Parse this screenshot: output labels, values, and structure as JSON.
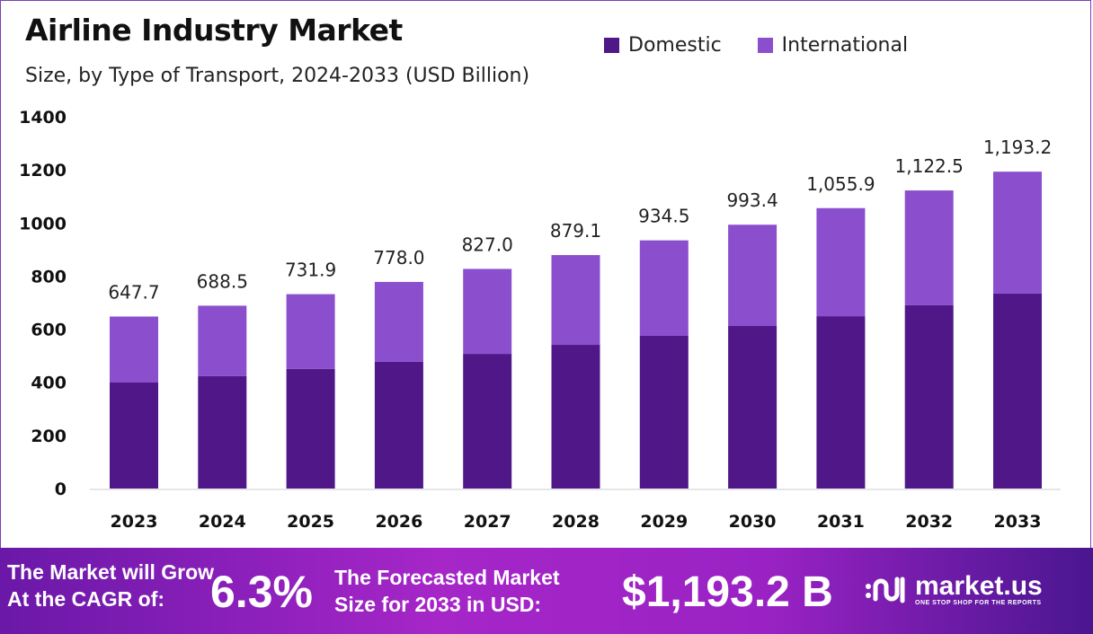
{
  "chart_data": {
    "type": "bar",
    "stacked": true,
    "title": "Airline Industry Market",
    "subtitle": "Size, by Type of Transport, 2024-2033 (USD Billion)",
    "categories": [
      "2023",
      "2024",
      "2025",
      "2026",
      "2027",
      "2028",
      "2029",
      "2030",
      "2031",
      "2032",
      "2033"
    ],
    "series": [
      {
        "name": "Domestic",
        "color": "#4f1787",
        "values": [
          399,
          423,
          450,
          477,
          507,
          541,
          575,
          612,
          649,
          690,
          734
        ]
      },
      {
        "name": "International",
        "color": "#8b4fce",
        "values": [
          248.7,
          265.5,
          281.9,
          301.0,
          320.0,
          338.1,
          359.5,
          381.4,
          406.9,
          432.5,
          459.2
        ]
      }
    ],
    "totals_labels": [
      "647.7",
      "688.5",
      "731.9",
      "778.0",
      "827.0",
      "879.1",
      "934.5",
      "993.4",
      "1,055.9",
      "1,122.5",
      "1,193.2"
    ],
    "totals": [
      647.7,
      688.5,
      731.9,
      778.0,
      827.0,
      879.1,
      934.5,
      993.4,
      1055.9,
      1122.5,
      1193.2
    ],
    "ylim": [
      0,
      1400
    ],
    "yticks": [
      "0",
      "200",
      "400",
      "600",
      "800",
      "1000",
      "1200",
      "1400"
    ],
    "grid": false,
    "legend_position": "top-right"
  },
  "footer": {
    "cagr_line1": "The Market will Grow",
    "cagr_line2": "At the CAGR of:",
    "cagr_value": "6.3%",
    "forecast_line1": "The Forecasted Market",
    "forecast_line2": "Size for 2033 in USD:",
    "forecast_value": "$1,193.2 B",
    "logo_name": "market.us",
    "logo_tagline": "ONE STOP SHOP FOR THE REPORTS"
  }
}
